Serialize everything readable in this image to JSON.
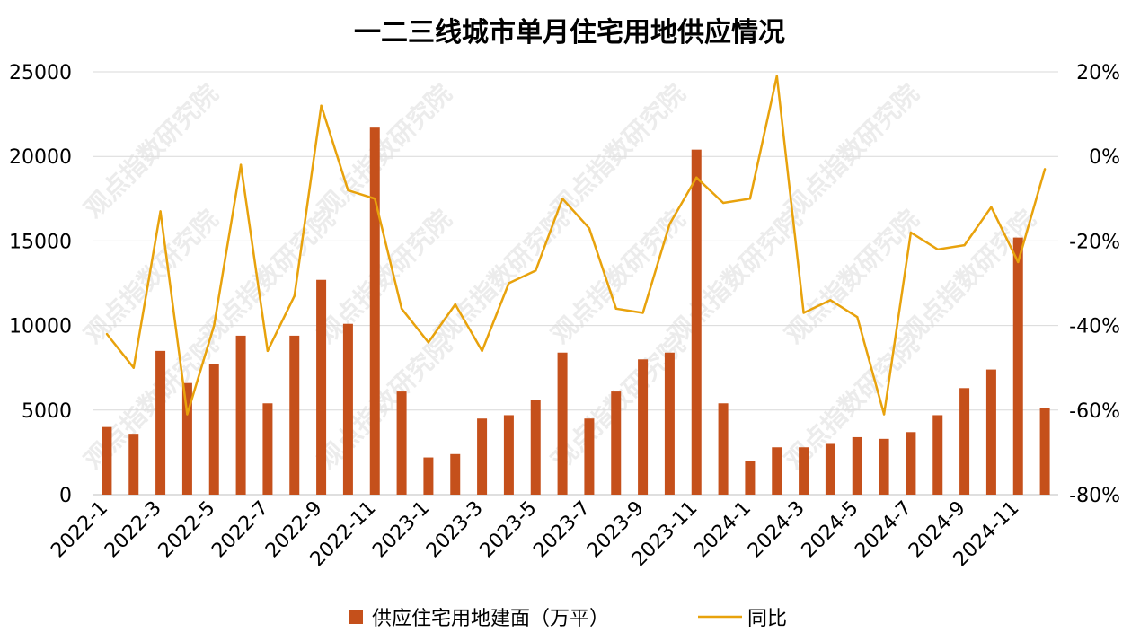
{
  "chart_data": {
    "type": "bar",
    "title": "一二三线城市单月住宅用地供应情况",
    "categories": [
      "2022-1",
      "2022-2",
      "2022-3",
      "2022-4",
      "2022-5",
      "2022-6",
      "2022-7",
      "2022-8",
      "2022-9",
      "2022-10",
      "2022-11",
      "2022-12",
      "2023-1",
      "2023-2",
      "2023-3",
      "2023-4",
      "2023-5",
      "2023-6",
      "2023-7",
      "2023-8",
      "2023-9",
      "2023-10",
      "2023-11",
      "2023-12",
      "2024-1",
      "2024-2",
      "2024-3",
      "2024-4",
      "2024-5",
      "2024-6",
      "2024-7",
      "2024-8",
      "2024-9",
      "2024-10",
      "2024-11",
      "2024-12"
    ],
    "x_tick_labels": [
      "2022-1",
      "2022-3",
      "2022-5",
      "2022-7",
      "2022-9",
      "2022-11",
      "2023-1",
      "2023-3",
      "2023-5",
      "2023-7",
      "2023-9",
      "2023-11",
      "2024-1",
      "2024-3",
      "2024-5",
      "2024-7",
      "2024-9",
      "2024-11"
    ],
    "series": [
      {
        "name": "供应住宅用地建面（万平）",
        "type": "bar",
        "axis": "left",
        "color": "#c5501b",
        "values": [
          4000,
          3600,
          8500,
          6600,
          7700,
          9400,
          5400,
          9400,
          12700,
          10100,
          21700,
          6100,
          2200,
          2400,
          4500,
          4700,
          5600,
          8400,
          4500,
          6100,
          8000,
          8400,
          20400,
          5400,
          2000,
          2800,
          2800,
          3000,
          3400,
          3300,
          3700,
          4700,
          6300,
          7400,
          15200,
          5100
        ]
      },
      {
        "name": "同比",
        "type": "line",
        "axis": "right",
        "color": "#e8a20c",
        "values": [
          -42,
          -50,
          -13,
          -61,
          -40,
          -2,
          -46,
          -33,
          12,
          -8,
          -10,
          -36,
          -44,
          -35,
          -46,
          -30,
          -27,
          -10,
          -17,
          -36,
          -37,
          -16,
          -5,
          -11,
          -10,
          19,
          -37,
          -34,
          -38,
          -61,
          -18,
          -22,
          -21,
          -12,
          -25,
          -3
        ]
      }
    ],
    "y_left": {
      "min": 0,
      "max": 25000,
      "ticks": [
        "0",
        "5000",
        "10000",
        "15000",
        "20000",
        "25000"
      ]
    },
    "y_right": {
      "min": -80,
      "max": 20,
      "unit": "%",
      "ticks": [
        "-80%",
        "-60%",
        "-40%",
        "-20%",
        "0%",
        "20%"
      ]
    },
    "grid": true,
    "legend_position": "bottom-center",
    "watermark": "观点指数研究院"
  }
}
